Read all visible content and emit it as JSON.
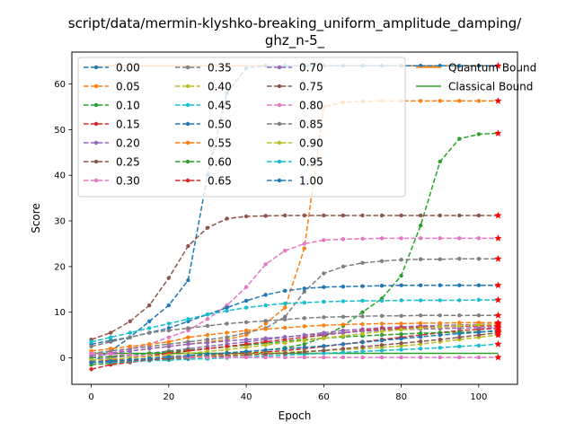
{
  "chart_data": {
    "type": "line",
    "title_lines": [
      "script/data/mermin-klyshko-breaking_uniform_amplitude_damping/",
      "ghz_n-5_"
    ],
    "xlabel": "Epoch",
    "ylabel": "Score",
    "xlim": [
      -5,
      110
    ],
    "ylim": [
      -5.8,
      67
    ],
    "xticks": [
      0,
      20,
      40,
      60,
      80,
      100
    ],
    "yticks": [
      0,
      10,
      20,
      30,
      40,
      50,
      60
    ],
    "x": [
      0,
      5,
      10,
      15,
      20,
      25,
      30,
      35,
      40,
      45,
      50,
      55,
      60,
      65,
      70,
      75,
      80,
      85,
      90,
      95,
      100,
      105
    ],
    "grid": false,
    "legend_position": "upper-left",
    "legend_columns": 3,
    "series": [
      {
        "name": "0.00",
        "color": "#1f77b4",
        "values": [
          -1.0,
          1.5,
          4.5,
          8.0,
          11.5,
          17.0,
          40.0,
          58.0,
          63.5,
          64.0,
          64.0,
          64.0,
          64.0,
          64.0,
          64.0,
          64.0,
          64.0,
          64.0,
          64.0,
          64.0,
          64.0,
          64.0
        ]
      },
      {
        "name": "0.05",
        "color": "#ff7f0e",
        "values": [
          0.5,
          1.0,
          1.5,
          2.0,
          2.5,
          3.0,
          3.5,
          4.0,
          5.0,
          7.5,
          11.0,
          24.0,
          55.0,
          56.0,
          56.2,
          56.3,
          56.3,
          56.3,
          56.3,
          56.3,
          56.3,
          56.3
        ]
      },
      {
        "name": "0.10",
        "color": "#2ca02c",
        "values": [
          -1.5,
          -1.2,
          -0.8,
          -0.4,
          0.0,
          0.3,
          0.6,
          1.0,
          1.3,
          1.7,
          2.2,
          3.0,
          4.5,
          7.0,
          10.0,
          13.0,
          18.0,
          29.0,
          43.0,
          48.0,
          49.0,
          49.2
        ]
      },
      {
        "name": "0.15",
        "color": "#d62728",
        "values": [
          -2.5,
          -1.5,
          -1.0,
          -0.5,
          0.0,
          0.3,
          0.5,
          0.8,
          1.0,
          1.3,
          1.6,
          2.0,
          2.5,
          3.0,
          3.5,
          4.0,
          4.5,
          5.0,
          5.5,
          6.0,
          6.2,
          6.5
        ]
      },
      {
        "name": "0.20",
        "color": "#9467bd",
        "values": [
          -0.5,
          0.0,
          0.5,
          1.0,
          1.5,
          2.0,
          2.5,
          3.0,
          3.5,
          4.0,
          4.5,
          5.0,
          5.5,
          6.0,
          6.3,
          6.6,
          6.8,
          7.0,
          7.1,
          7.2,
          7.3,
          7.4
        ]
      },
      {
        "name": "0.25",
        "color": "#8c564b",
        "values": [
          4.0,
          5.5,
          8.0,
          11.5,
          17.5,
          24.5,
          28.5,
          30.5,
          31.0,
          31.1,
          31.2,
          31.2,
          31.2,
          31.2,
          31.2,
          31.2,
          31.2,
          31.2,
          31.2,
          31.2,
          31.2,
          31.2
        ]
      },
      {
        "name": "0.30",
        "color": "#e377c2",
        "values": [
          0.0,
          1.0,
          2.0,
          3.0,
          4.5,
          6.0,
          8.5,
          11.5,
          15.5,
          20.5,
          23.5,
          25.0,
          25.8,
          26.0,
          26.1,
          26.2,
          26.2,
          26.2,
          26.2,
          26.2,
          26.2,
          26.2
        ]
      },
      {
        "name": "0.35",
        "color": "#7f7f7f",
        "values": [
          1.0,
          1.5,
          2.0,
          2.5,
          3.0,
          3.5,
          4.0,
          4.5,
          5.5,
          6.5,
          9.0,
          14.5,
          18.5,
          20.0,
          20.8,
          21.2,
          21.5,
          21.6,
          21.6,
          21.7,
          21.7,
          21.7
        ]
      },
      {
        "name": "0.40",
        "color": "#bcbd22",
        "values": [
          -1.0,
          -0.8,
          -0.5,
          -0.3,
          0.0,
          0.2,
          0.4,
          0.6,
          0.8,
          1.0,
          1.2,
          1.4,
          1.6,
          1.8,
          2.0,
          2.3,
          2.6,
          3.0,
          3.5,
          4.0,
          4.5,
          5.0
        ]
      },
      {
        "name": "0.45",
        "color": "#17becf",
        "values": [
          -1.0,
          -1.0,
          -0.8,
          -0.6,
          -0.5,
          -0.3,
          -0.2,
          0.0,
          0.2,
          0.4,
          0.6,
          0.8,
          1.0,
          1.2,
          1.4,
          1.6,
          1.8,
          2.0,
          2.2,
          2.5,
          2.7,
          3.0
        ]
      },
      {
        "name": "0.50",
        "color": "#1f77b4",
        "values": [
          3.0,
          3.8,
          4.5,
          5.5,
          6.5,
          8.0,
          9.5,
          11.0,
          12.5,
          13.8,
          14.7,
          15.2,
          15.5,
          15.6,
          15.7,
          15.8,
          15.9,
          15.9,
          15.9,
          15.9,
          15.9,
          15.9
        ]
      },
      {
        "name": "0.55",
        "color": "#ff7f0e",
        "values": [
          1.5,
          2.0,
          2.5,
          3.0,
          3.5,
          4.5,
          5.0,
          5.5,
          6.0,
          6.3,
          6.6,
          6.9,
          7.1,
          7.3,
          7.4,
          7.5,
          7.5,
          7.6,
          7.6,
          7.7,
          7.7,
          7.7
        ]
      },
      {
        "name": "0.60",
        "color": "#2ca02c",
        "values": [
          0.0,
          0.3,
          0.6,
          1.0,
          1.3,
          1.7,
          2.0,
          2.4,
          2.8,
          3.2,
          3.6,
          4.0,
          4.3,
          4.6,
          4.8,
          5.0,
          5.2,
          5.4,
          5.5,
          5.6,
          5.7,
          5.8
        ]
      },
      {
        "name": "0.65",
        "color": "#d62728",
        "values": [
          -1.0,
          -0.5,
          0.0,
          0.5,
          1.0,
          1.5,
          2.0,
          2.5,
          3.0,
          3.5,
          4.0,
          4.5,
          5.0,
          5.5,
          6.0,
          6.3,
          6.5,
          6.7,
          6.8,
          6.9,
          7.0,
          7.0
        ]
      },
      {
        "name": "0.70",
        "color": "#9467bd",
        "values": [
          0.5,
          1.0,
          1.5,
          2.0,
          2.5,
          3.0,
          3.3,
          3.7,
          4.0,
          4.3,
          4.6,
          4.9,
          5.2,
          5.5,
          5.8,
          6.0,
          6.2,
          6.3,
          6.4,
          6.5,
          6.6,
          6.6
        ]
      },
      {
        "name": "0.75",
        "color": "#8c564b",
        "values": [
          -1.0,
          -0.8,
          -0.6,
          -0.4,
          -0.2,
          0.0,
          0.2,
          0.4,
          0.6,
          0.8,
          1.0,
          1.3,
          1.6,
          2.0,
          2.4,
          2.8,
          3.2,
          3.6,
          4.0,
          4.5,
          5.0,
          5.5
        ]
      },
      {
        "name": "0.80",
        "color": "#e377c2",
        "values": [
          1.0,
          0.8,
          0.6,
          0.4,
          0.3,
          0.2,
          0.1,
          0.1,
          0.1,
          0.1,
          0.1,
          0.1,
          0.1,
          0.1,
          0.1,
          0.1,
          0.1,
          0.1,
          0.1,
          0.1,
          0.1,
          0.1
        ]
      },
      {
        "name": "0.85",
        "color": "#7f7f7f",
        "values": [
          2.5,
          3.5,
          4.5,
          5.5,
          6.0,
          6.5,
          7.0,
          7.5,
          7.8,
          8.1,
          8.4,
          8.7,
          8.9,
          9.0,
          9.1,
          9.2,
          9.2,
          9.3,
          9.3,
          9.3,
          9.3,
          9.3
        ]
      },
      {
        "name": "0.90",
        "color": "#bcbd22",
        "values": [
          -0.5,
          -0.3,
          0.0,
          0.3,
          0.6,
          1.0,
          1.4,
          1.8,
          2.3,
          2.8,
          3.3,
          3.8,
          4.3,
          4.8,
          5.3,
          5.8,
          6.2,
          6.5,
          6.8,
          7.0,
          7.2,
          7.4
        ]
      },
      {
        "name": "0.95",
        "color": "#17becf",
        "values": [
          3.5,
          4.5,
          5.5,
          6.5,
          7.5,
          8.5,
          9.5,
          10.3,
          11.0,
          11.5,
          11.9,
          12.1,
          12.3,
          12.4,
          12.5,
          12.5,
          12.6,
          12.6,
          12.6,
          12.6,
          12.7,
          12.7
        ]
      },
      {
        "name": "1.00",
        "color": "#1f77b4",
        "values": [
          -1.0,
          -0.7,
          -0.4,
          -0.1,
          0.2,
          0.5,
          0.8,
          1.1,
          1.4,
          1.7,
          2.0,
          2.3,
          2.6,
          3.0,
          3.4,
          3.8,
          4.2,
          4.6,
          5.0,
          5.3,
          5.6,
          6.0
        ]
      }
    ],
    "bounds": [
      {
        "name": "Quantum Bound",
        "color": "#ff7f0e",
        "value": 64.0
      },
      {
        "name": "Classical Bound",
        "color": "#2ca02c",
        "value": 1.0
      }
    ],
    "end_marker_color": "#ff0000"
  }
}
